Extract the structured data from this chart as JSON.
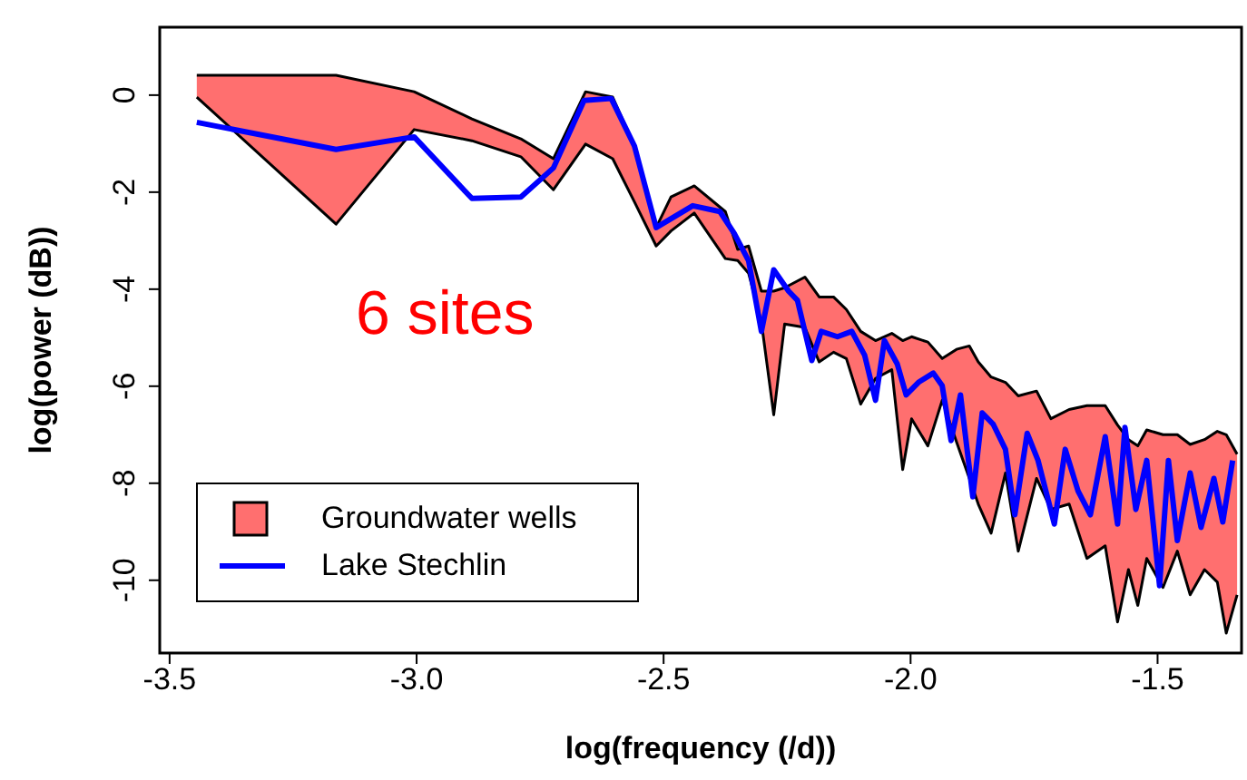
{
  "chart_data": {
    "type": "line",
    "xlabel": "log(frequency (/d))",
    "ylabel": "log(power (dB))",
    "annotations": [
      "6 sites"
    ],
    "xlim": [
      -3.52,
      -1.33
    ],
    "ylim": [
      -11.5,
      1.4
    ],
    "xticks": [
      {
        "value": -3.5,
        "label": "-3.5"
      },
      {
        "value": -3,
        "label": "-3.0"
      },
      {
        "value": -2.5,
        "label": "-2.5"
      },
      {
        "value": -2,
        "label": "-2.0"
      },
      {
        "value": -1.5,
        "label": "-1.5"
      }
    ],
    "yticks": [
      0,
      -2,
      -4,
      -6,
      -8,
      -10
    ],
    "grid": false,
    "legend": "bottom left",
    "marker": "none",
    "line_style": "solid",
    "series": [
      {
        "name": "Groundwater wells",
        "type": "area",
        "color": "#ff6f6f",
        "values": [
          null,
          null,
          null,
          null,
          null,
          null,
          null,
          null,
          null,
          null,
          null,
          null,
          null,
          null,
          null,
          null,
          null,
          null,
          null,
          null,
          null,
          null,
          null,
          null,
          null,
          null,
          null,
          null,
          null,
          null,
          null,
          null,
          null,
          null,
          null,
          null,
          null,
          null,
          null,
          null,
          null,
          null,
          null,
          null,
          null,
          null,
          null,
          null,
          null,
          null,
          null
        ],
        "x": [
          -3.445,
          -3.163,
          -3.005,
          -2.888,
          -2.789,
          -2.723,
          -2.658,
          -2.603,
          -2.559,
          -2.515,
          -2.485,
          -2.438,
          -2.375,
          -2.35,
          -2.328,
          -2.302,
          -2.277,
          -2.255,
          -2.214,
          -2.185,
          -2.156,
          -2.13,
          -2.101,
          -2.071,
          -2.038,
          -2.016,
          -1.998,
          -1.965,
          -1.936,
          -1.907,
          -1.881,
          -1.863,
          -1.837,
          -1.808,
          -1.782,
          -1.745,
          -1.716,
          -1.679,
          -1.643,
          -1.606,
          -1.581,
          -1.559,
          -1.54,
          -1.522,
          -1.489,
          -1.46,
          -1.434,
          -1.405,
          -1.379,
          -1.361,
          -1.339
        ],
        "upper": [
          0.41,
          0.41,
          0.07,
          -0.49,
          -0.9,
          -1.31,
          0.07,
          -0.04,
          -1.05,
          -2.73,
          -2.1,
          -1.87,
          -2.4,
          -3.18,
          -3.11,
          -4.04,
          -4.04,
          -3.97,
          -3.75,
          -4.16,
          -4.16,
          -4.42,
          -4.87,
          -5.06,
          -4.91,
          -5.06,
          -4.98,
          -5.09,
          -5.43,
          -5.24,
          -5.17,
          -5.5,
          -5.81,
          -5.92,
          -6.2,
          -6.1,
          -6.67,
          -6.48,
          -6.4,
          -6.4,
          -6.8,
          -7.1,
          -7.23,
          -6.9,
          -7.0,
          -7.0,
          -7.2,
          -7.1,
          -6.93,
          -7.0,
          -7.4
        ],
        "lower": [
          -0.04,
          -2.66,
          -0.71,
          -0.94,
          -1.27,
          -1.95,
          -1.01,
          -1.31,
          -2.2,
          -3.11,
          -2.8,
          -2.43,
          -3.37,
          -3.41,
          -3.67,
          -4.68,
          -6.59,
          -4.72,
          -4.79,
          -5.5,
          -5.3,
          -5.43,
          -6.37,
          -5.84,
          -5.66,
          -7.72,
          -6.67,
          -7.23,
          -6.29,
          -7.15,
          -7.9,
          -8.43,
          -9.03,
          -7.79,
          -9.4,
          -7.9,
          -8.54,
          -8.43,
          -9.55,
          -9.29,
          -10.86,
          -9.78,
          -10.52,
          -9.55,
          -10.15,
          -9.4,
          -10.3,
          -9.78,
          -10.04,
          -11.09,
          -10.3
        ]
      },
      {
        "color": "#000000",
        "x": [
          -3.445,
          -3.163,
          -3.005,
          -2.888,
          -2.789,
          -2.723,
          -2.658,
          -2.603,
          -2.559,
          -2.515,
          -2.485,
          -2.438,
          -2.375,
          -2.35,
          -2.328,
          -2.302,
          -2.277,
          -2.255,
          -2.214,
          -2.185,
          -2.156,
          -2.13,
          -2.101,
          -2.071,
          -2.038,
          -2.016,
          -1.998,
          -1.965,
          -1.936,
          -1.907,
          -1.881,
          -1.863,
          -1.837,
          -1.808,
          -1.782,
          -1.745,
          -1.716,
          -1.679,
          -1.643,
          -1.606,
          -1.581,
          -1.559,
          -1.54,
          -1.522,
          -1.489,
          -1.46,
          -1.434,
          -1.405,
          -1.379,
          -1.361,
          -1.339
        ],
        "values": [
          0.41,
          0.41,
          0.07,
          -0.49,
          -0.9,
          -1.31,
          0.07,
          -0.04,
          -1.05,
          -2.73,
          -2.1,
          -1.87,
          -2.4,
          -3.18,
          -3.11,
          -4.04,
          -4.04,
          -3.97,
          -3.75,
          -4.16,
          -4.16,
          -4.42,
          -4.87,
          -5.06,
          -4.91,
          -5.06,
          -4.98,
          -5.09,
          -5.43,
          -5.24,
          -5.17,
          -5.5,
          -5.81,
          -5.92,
          -6.2,
          -6.1,
          -6.67,
          -6.48,
          -6.4,
          -6.4,
          -6.8,
          -7.1,
          -7.23,
          -6.9,
          -7.0,
          -7.0,
          -7.2,
          -7.1,
          -6.93,
          -7.0,
          -7.4
        ]
      },
      {
        "color": "#000000",
        "x": [
          -3.445,
          -3.163,
          -3.005,
          -2.888,
          -2.789,
          -2.723,
          -2.658,
          -2.603,
          -2.559,
          -2.515,
          -2.485,
          -2.438,
          -2.375,
          -2.35,
          -2.328,
          -2.302,
          -2.277,
          -2.255,
          -2.214,
          -2.185,
          -2.156,
          -2.13,
          -2.101,
          -2.071,
          -2.038,
          -2.016,
          -1.998,
          -1.965,
          -1.936,
          -1.907,
          -1.881,
          -1.863,
          -1.837,
          -1.808,
          -1.782,
          -1.745,
          -1.716,
          -1.679,
          -1.643,
          -1.606,
          -1.581,
          -1.559,
          -1.54,
          -1.522,
          -1.489,
          -1.46,
          -1.434,
          -1.405,
          -1.379,
          -1.361,
          -1.339
        ],
        "values": [
          -0.04,
          -2.66,
          -0.71,
          -0.94,
          -1.27,
          -1.95,
          -1.01,
          -1.31,
          -2.2,
          -3.11,
          -2.8,
          -2.43,
          -3.37,
          -3.41,
          -3.67,
          -4.68,
          -6.59,
          -4.72,
          -4.79,
          -5.5,
          -5.3,
          -5.43,
          -6.37,
          -5.84,
          -5.66,
          -7.72,
          -6.67,
          -7.23,
          -6.29,
          -7.15,
          -7.9,
          -8.43,
          -9.03,
          -7.79,
          -9.4,
          -7.9,
          -8.54,
          -8.43,
          -9.55,
          -9.29,
          -10.86,
          -9.78,
          -10.52,
          -9.55,
          -10.15,
          -9.4,
          -10.3,
          -9.78,
          -10.04,
          -11.09,
          -10.3
        ]
      },
      {
        "name": "Lake Stechlin",
        "type": "line",
        "color": "#0000ff",
        "x": [
          -3.445,
          -3.163,
          -3.005,
          -2.888,
          -2.789,
          -2.723,
          -2.661,
          -2.606,
          -2.559,
          -2.515,
          -2.441,
          -2.386,
          -2.357,
          -2.328,
          -2.302,
          -2.277,
          -2.247,
          -2.229,
          -2.2,
          -2.181,
          -2.148,
          -2.119,
          -2.093,
          -2.071,
          -2.053,
          -2.027,
          -2.009,
          -1.984,
          -1.954,
          -1.936,
          -1.918,
          -1.899,
          -1.874,
          -1.855,
          -1.833,
          -1.808,
          -1.789,
          -1.764,
          -1.742,
          -1.709,
          -1.687,
          -1.661,
          -1.636,
          -1.606,
          -1.581,
          -1.566,
          -1.544,
          -1.522,
          -1.496,
          -1.478,
          -1.46,
          -1.434,
          -1.412,
          -1.386,
          -1.368,
          -1.348
        ],
        "values": [
          -0.56,
          -1.12,
          -0.86,
          -2.13,
          -2.1,
          -1.5,
          -0.11,
          -0.07,
          -1.05,
          -2.73,
          -2.28,
          -2.4,
          -2.85,
          -3.41,
          -4.87,
          -3.6,
          -4.04,
          -4.23,
          -5.47,
          -4.87,
          -4.98,
          -4.87,
          -5.36,
          -6.29,
          -5.06,
          -5.54,
          -6.18,
          -5.92,
          -5.73,
          -5.99,
          -7.12,
          -6.18,
          -8.28,
          -6.55,
          -6.78,
          -7.3,
          -8.65,
          -6.97,
          -7.53,
          -8.84,
          -7.3,
          -8.16,
          -8.65,
          -7.04,
          -8.84,
          -6.85,
          -8.54,
          -7.53,
          -10.11,
          -7.53,
          -9.18,
          -7.79,
          -8.91,
          -7.9,
          -8.8,
          -7.53
        ]
      }
    ]
  }
}
